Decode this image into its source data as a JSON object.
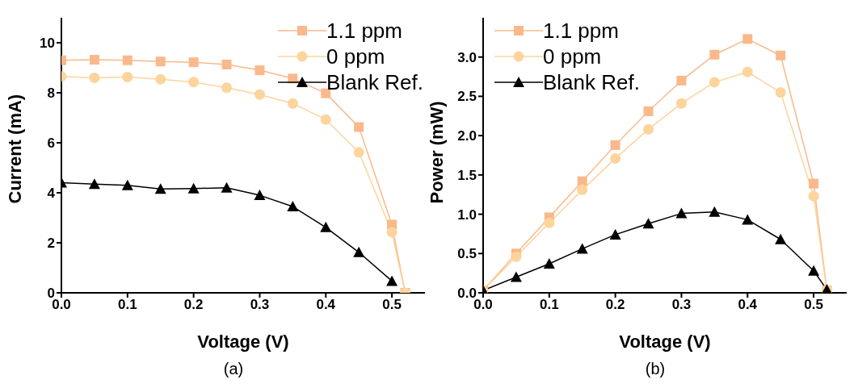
{
  "chart_data": [
    {
      "type": "line",
      "xlabel": "Voltage (V)",
      "ylabel": "Current (mA)",
      "annotations": [
        "(a)"
      ],
      "xlim": [
        0,
        0.55
      ],
      "xticks": [
        {
          "value": 0,
          "label": "0.0"
        },
        0.1,
        0.2,
        0.3,
        0.4,
        0.5
      ],
      "ylim": [
        0,
        11
      ],
      "yticks": [
        0,
        2,
        4,
        6,
        8,
        10
      ],
      "grid": false,
      "legend": "top right",
      "series": [
        {
          "name": "1.1 ppm",
          "color": "#f9b98b",
          "marker": "square",
          "x": [
            0,
            0.05,
            0.1,
            0.15,
            0.2,
            0.25,
            0.3,
            0.35,
            0.4,
            0.45,
            0.5,
            0.52
          ],
          "values": [
            9.3,
            9.32,
            9.3,
            9.25,
            9.22,
            9.13,
            8.9,
            8.57,
            7.98,
            6.63,
            2.73,
            0
          ]
        },
        {
          "name": "0 ppm",
          "color": "#fcd49c",
          "marker": "circle",
          "x": [
            0,
            0.05,
            0.1,
            0.15,
            0.2,
            0.25,
            0.3,
            0.35,
            0.4,
            0.45,
            0.5,
            0.52
          ],
          "values": [
            8.65,
            8.6,
            8.63,
            8.54,
            8.43,
            8.2,
            7.93,
            7.57,
            6.93,
            5.62,
            2.42,
            0
          ]
        },
        {
          "name": "Blank Ref.",
          "color": "#000000",
          "marker": "triangle",
          "x": [
            0,
            0.05,
            0.1,
            0.15,
            0.2,
            0.25,
            0.3,
            0.35,
            0.4,
            0.45,
            0.5
          ],
          "values": [
            4.4,
            4.35,
            4.3,
            4.15,
            4.17,
            4.2,
            3.9,
            3.45,
            2.62,
            1.62,
            0.47
          ]
        }
      ]
    },
    {
      "type": "line",
      "xlabel": "Voltage (V)",
      "ylabel": "Power (mW)",
      "annotations": [
        "(b)"
      ],
      "xlim": [
        0,
        0.55
      ],
      "xticks": [
        {
          "value": 0,
          "label": "0.0"
        },
        0.1,
        0.2,
        0.3,
        0.4,
        0.5
      ],
      "ylim": [
        0,
        3.5
      ],
      "yticks": [
        {
          "value": 0,
          "label": "0.0"
        },
        0.5,
        {
          "value": 1,
          "label": "1.0"
        },
        1.5,
        {
          "value": 2,
          "label": "2.0"
        },
        2.5,
        {
          "value": 3,
          "label": "3.0"
        }
      ],
      "grid": false,
      "legend": "top left",
      "series": [
        {
          "name": "1.1 ppm",
          "color": "#f9b98b",
          "marker": "square",
          "x": [
            0,
            0.05,
            0.1,
            0.15,
            0.2,
            0.25,
            0.3,
            0.35,
            0.4,
            0.45,
            0.5,
            0.52
          ],
          "values": [
            0.03,
            0.5,
            0.96,
            1.42,
            1.88,
            2.31,
            2.7,
            3.03,
            3.23,
            3.02,
            1.39,
            0.03
          ]
        },
        {
          "name": "0 ppm",
          "color": "#fcd49c",
          "marker": "circle",
          "x": [
            0,
            0.05,
            0.1,
            0.15,
            0.2,
            0.25,
            0.3,
            0.35,
            0.4,
            0.45,
            0.5,
            0.52
          ],
          "values": [
            0.03,
            0.46,
            0.89,
            1.31,
            1.71,
            2.08,
            2.41,
            2.68,
            2.81,
            2.55,
            1.23,
            0.03
          ]
        },
        {
          "name": "Blank Ref.",
          "color": "#000000",
          "marker": "triangle",
          "x": [
            0,
            0.05,
            0.1,
            0.15,
            0.2,
            0.25,
            0.3,
            0.35,
            0.4,
            0.45,
            0.5,
            0.52
          ],
          "values": [
            0.03,
            0.2,
            0.37,
            0.56,
            0.74,
            0.88,
            1.01,
            1.03,
            0.93,
            0.68,
            0.28,
            0.04
          ]
        }
      ]
    }
  ]
}
